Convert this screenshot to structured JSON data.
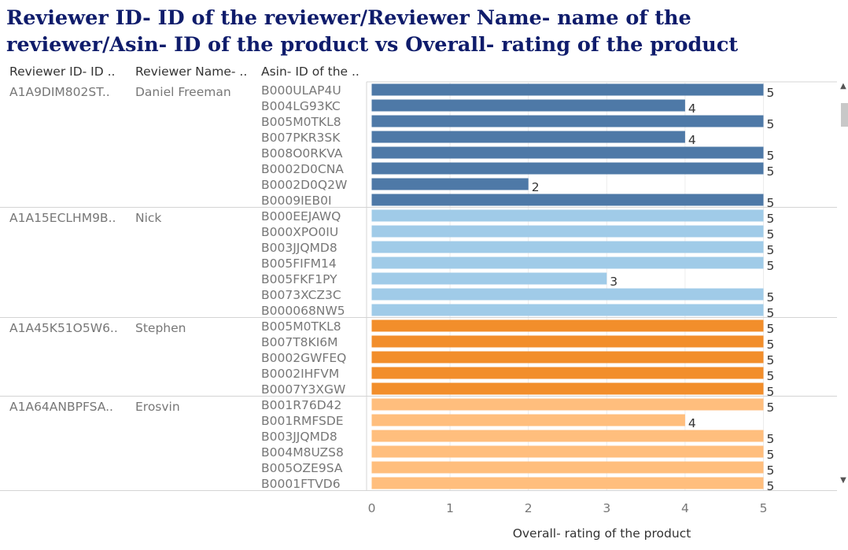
{
  "title": "Reviewer ID- ID of the reviewer/Reviewer Name- name of the reviewer/Asin- ID of the product vs Overall- rating of the product",
  "column_headers": [
    "Reviewer ID- ID ..",
    "Reviewer Name- ..",
    "Asin- ID of the .."
  ],
  "colors": {
    "group_colors": [
      "#4e79a7",
      "#a0cbe8",
      "#f28e2b",
      "#ffbe7d"
    ],
    "title": "#0f1c6b",
    "separator": "#d4d4d4"
  },
  "scrollbar": {
    "up_icon": "chevron-up-icon",
    "down_icon": "chevron-down-icon"
  },
  "chart_data": {
    "type": "bar",
    "orientation": "horizontal",
    "title": "Reviewer ID- ID of the reviewer/Reviewer Name- name of the reviewer/Asin- ID of the product vs Overall- rating of the product",
    "xlabel": "Overall- rating of the product",
    "xlim": [
      0,
      6
    ],
    "xticks": [
      0,
      1,
      2,
      3,
      4,
      5,
      6
    ],
    "grid": true,
    "groups": [
      {
        "reviewer_id": "A1A9DIM802ST..",
        "reviewer_name": "Daniel Freeman",
        "asins": [
          "B000ULAP4U",
          "B004LG93KC",
          "B005M0TKL8",
          "B007PKR3SK",
          "B008O0RKVA",
          "B0002D0CNA",
          "B0002D0Q2W",
          "B0009IEB0I"
        ],
        "values": [
          5,
          4,
          5,
          4,
          5,
          5,
          2,
          5
        ]
      },
      {
        "reviewer_id": "A1A15ECLHM9B..",
        "reviewer_name": "Nick",
        "asins": [
          "B000EEJAWQ",
          "B000XPO0IU",
          "B003JJQMD8",
          "B005FIFM14",
          "B005FKF1PY",
          "B0073XCZ3C",
          "B000068NW5"
        ],
        "values": [
          5,
          5,
          5,
          5,
          3,
          5,
          5
        ]
      },
      {
        "reviewer_id": "A1A45K51O5W6..",
        "reviewer_name": "Stephen",
        "asins": [
          "B005M0TKL8",
          "B007T8KI6M",
          "B0002GWFEQ",
          "B0002IHFVM",
          "B0007Y3XGW"
        ],
        "values": [
          5,
          5,
          5,
          5,
          5
        ]
      },
      {
        "reviewer_id": "A1A64ANBPFSA..",
        "reviewer_name": "Erosvin",
        "asins": [
          "B001R76D42",
          "B001RMFSDE",
          "B003JJQMD8",
          "B004M8UZS8",
          "B005OZE9SA",
          "B0001FTVD6"
        ],
        "values": [
          5,
          4,
          5,
          5,
          5,
          5
        ]
      }
    ]
  }
}
